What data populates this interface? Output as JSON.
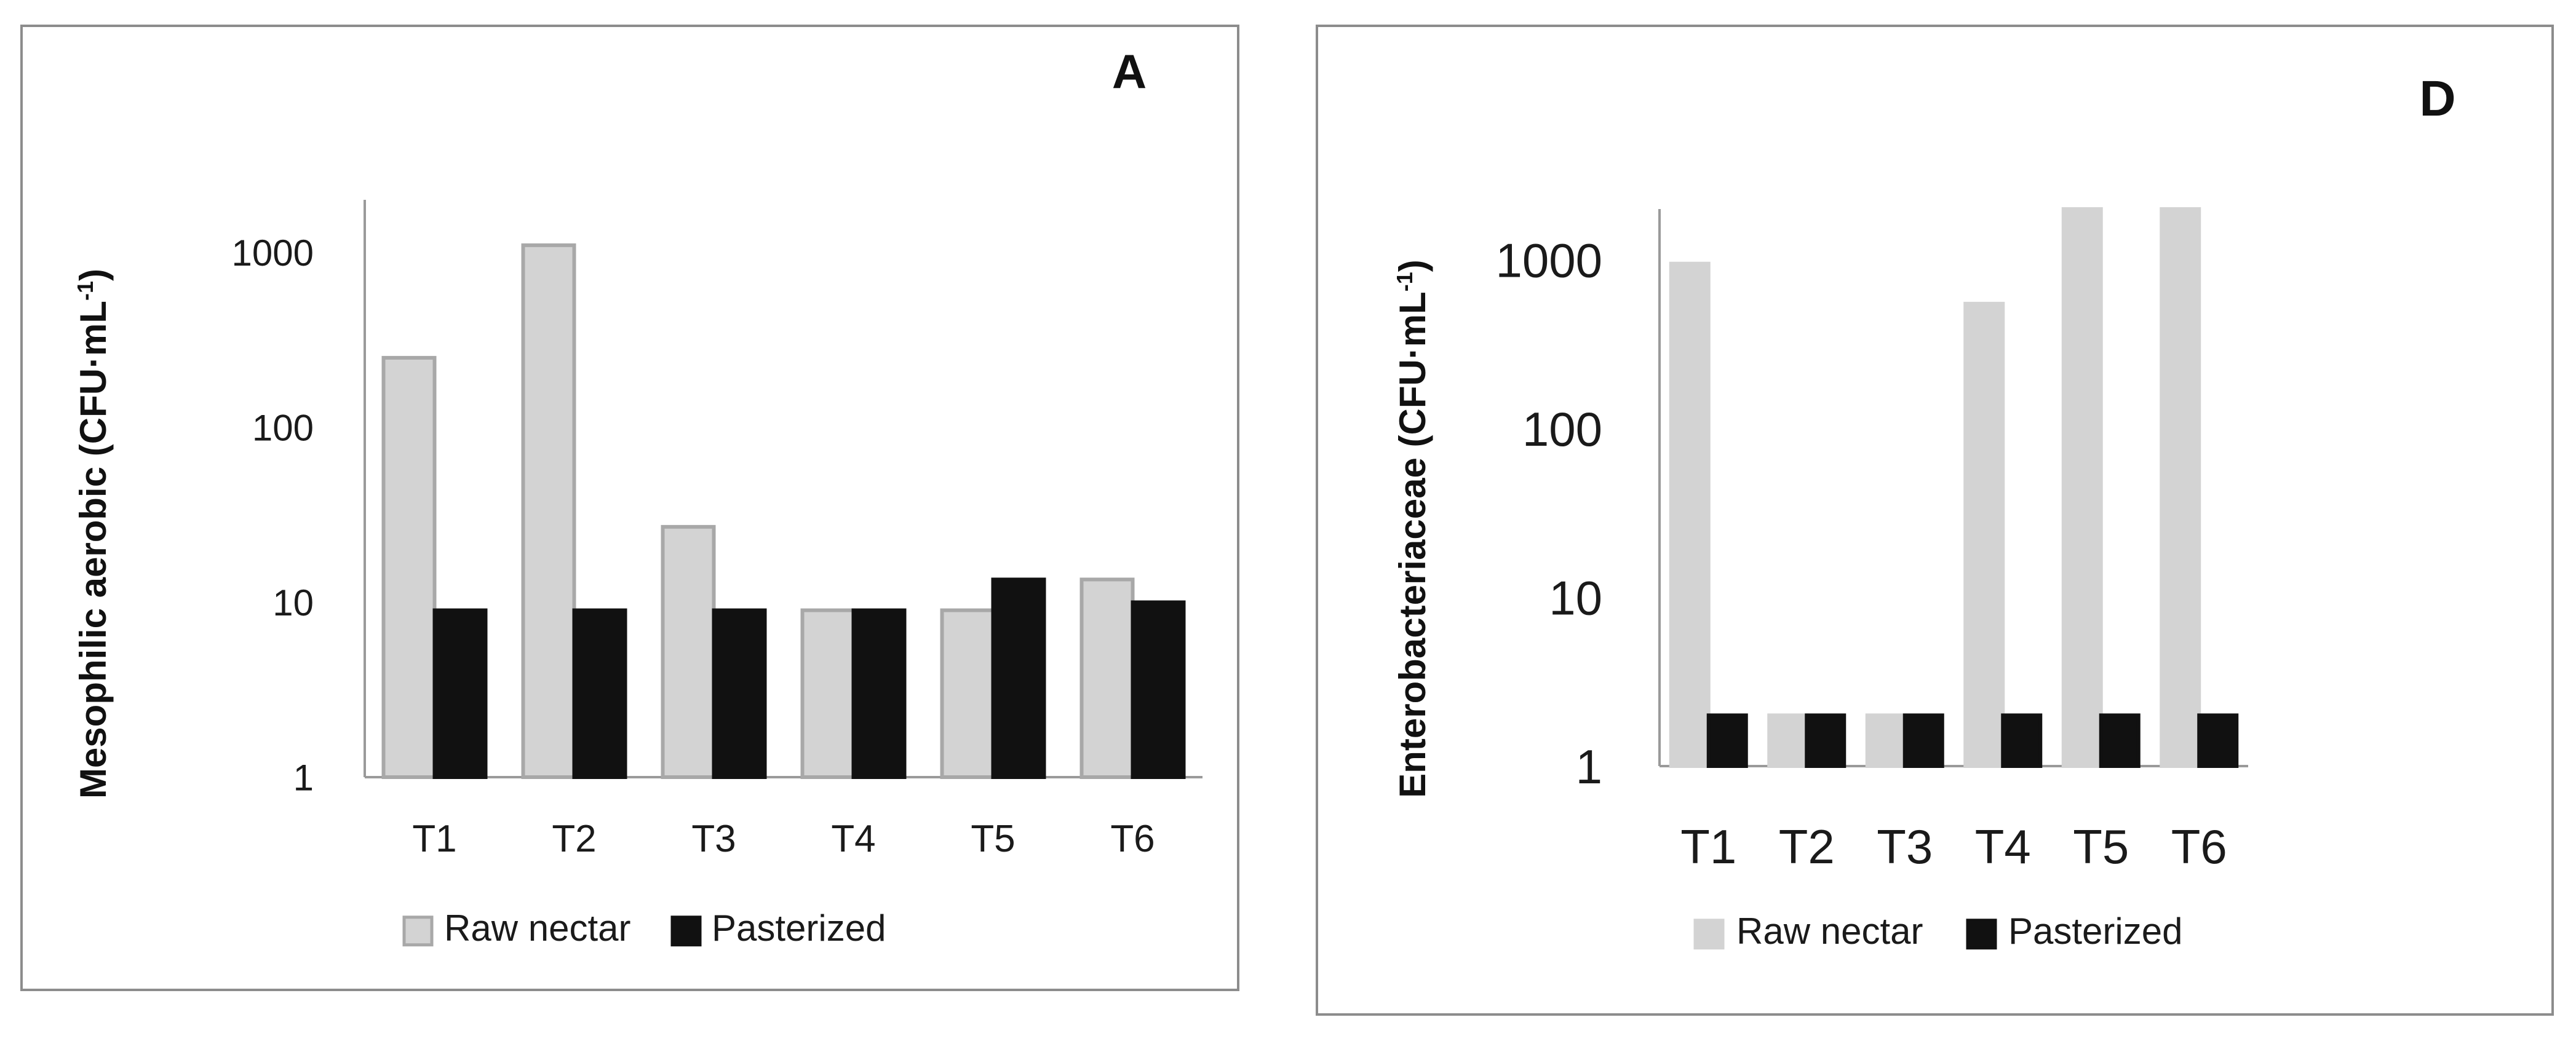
{
  "chart_data": [
    {
      "type": "bar",
      "panel_label": "A",
      "ylabel": "Mesophilic aerobic (CFU·mL",
      "ylabel_sup": "-1",
      "ylabel_close": ")",
      "yscale": "log",
      "ylim": [
        1,
        2000
      ],
      "yticks": [
        1,
        10,
        100,
        1000
      ],
      "ytick_labels": [
        "1",
        "10",
        "100",
        "1000"
      ],
      "categories": [
        "T1",
        "T2",
        "T3",
        "T4",
        "T5",
        "T6"
      ],
      "series": [
        {
          "name": "Raw nectar",
          "values": [
            250,
            1100,
            27,
            9,
            9,
            13.5
          ],
          "color": "#d3d3d3",
          "stroke": "#a8a8a8"
        },
        {
          "name": "Pasterized",
          "values": [
            9,
            9,
            9,
            9,
            13.5,
            10
          ],
          "color": "#111111",
          "stroke": "#111111"
        }
      ],
      "legend_position": "bottom",
      "grid": false
    },
    {
      "type": "bar",
      "panel_label": "D",
      "ylabel": "Enterobacteriaceae (CFU·mL",
      "ylabel_sup": "-1",
      "ylabel_close": ")",
      "yscale": "log",
      "ylim": [
        1,
        2000
      ],
      "yticks": [
        1,
        10,
        100,
        1000
      ],
      "ytick_labels": [
        "1",
        "10",
        "100",
        "1000"
      ],
      "categories": [
        "T1",
        "T2",
        "T3",
        "T4",
        "T5",
        "T6"
      ],
      "series": [
        {
          "name": "Raw nectar",
          "values": [
            950,
            2,
            2,
            550,
            2000,
            2000
          ],
          "color": "#d3d3d3",
          "stroke": "#d3d3d3"
        },
        {
          "name": "Pasterized",
          "values": [
            2,
            2,
            2,
            2,
            2,
            2
          ],
          "color": "#111111",
          "stroke": "#111111"
        }
      ],
      "legend_position": "bottom",
      "grid": false
    }
  ]
}
